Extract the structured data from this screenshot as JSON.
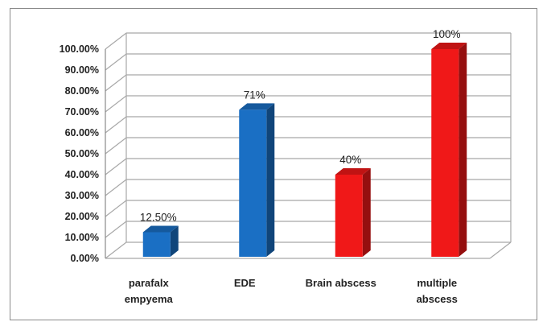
{
  "chart_data": {
    "type": "bar",
    "style": "3d-column",
    "title": "",
    "xlabel": "",
    "ylabel": "",
    "ylim": [
      0,
      100
    ],
    "yticks": [
      "0.00%",
      "10.00%",
      "20.00%",
      "30.00%",
      "40.00%",
      "50.00%",
      "60.00%",
      "70.00%",
      "80.00%",
      "90.00%",
      "100.00%"
    ],
    "grid": true,
    "legend": "none",
    "categories": [
      [
        "parafalx",
        "empyema"
      ],
      [
        "EDE"
      ],
      [
        "Brain abscess"
      ],
      [
        "multiple",
        "abscess"
      ]
    ],
    "values": [
      12.5,
      71,
      40,
      100
    ],
    "data_labels": [
      "12.50%",
      "71%",
      "40%",
      "100%"
    ],
    "bar_colors": [
      "#1a6fc4",
      "#1a6fc4",
      "#f01818",
      "#f01818"
    ]
  }
}
